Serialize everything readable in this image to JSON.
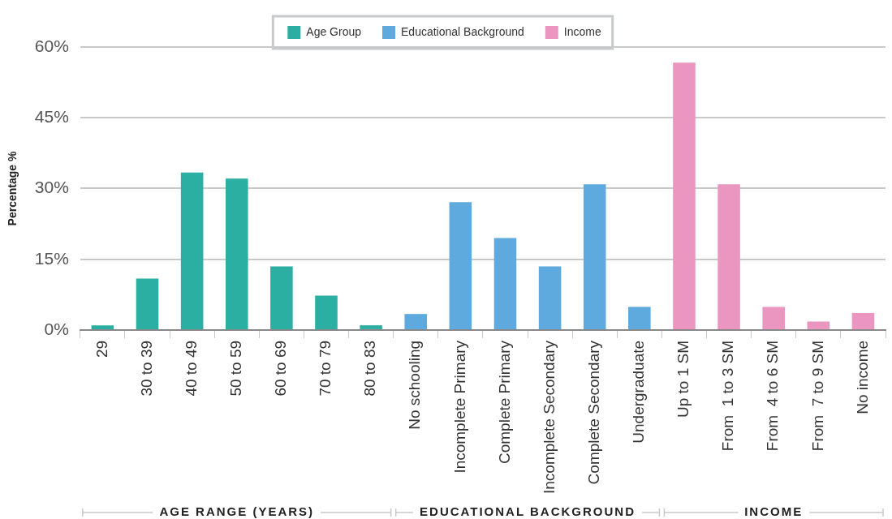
{
  "chart_data": {
    "type": "bar",
    "categories": [
      "29",
      "30 to 39",
      "40 to 49",
      "50 to 59",
      "60 to 69",
      "70 to 79",
      "80 to 83",
      "No schooling",
      "Incomplete Primary",
      "Complete Primary",
      "Incomplete Secondary",
      "Complete Secondary",
      "Undergraduate",
      "Up to 1 SM",
      "From  1 to 3 SM",
      "From  4 to 6 SM",
      "From  7 to 9 SM",
      "No income"
    ],
    "series": [
      {
        "name": "Age Group",
        "color": "#2bafa3",
        "values": [
          1.0,
          10.9,
          33.4,
          32.1,
          13.5,
          7.3,
          1.0,
          null,
          null,
          null,
          null,
          null,
          null,
          null,
          null,
          null,
          null,
          null
        ]
      },
      {
        "name": "Educational Background",
        "color": "#5ea9dd",
        "values": [
          null,
          null,
          null,
          null,
          null,
          null,
          null,
          3.4,
          27.1,
          19.5,
          13.5,
          30.9,
          4.9,
          null,
          null,
          null,
          null,
          null
        ]
      },
      {
        "name": "Income",
        "color": "#ea96c0",
        "values": [
          null,
          null,
          null,
          null,
          null,
          null,
          null,
          null,
          null,
          null,
          null,
          null,
          null,
          56.7,
          30.9,
          4.9,
          1.8,
          3.6
        ]
      }
    ],
    "ylabel": "Percentage %",
    "ylim": [
      0,
      60
    ],
    "yticks": [
      {
        "value": 0,
        "label": "0%"
      },
      {
        "value": 15,
        "label": "15%"
      },
      {
        "value": 30,
        "label": "30%"
      },
      {
        "value": 45,
        "label": "45%"
      },
      {
        "value": 60,
        "label": "60%"
      }
    ],
    "annotations": [
      "AGE RANGE (YEARS)",
      "EDUCATIONAL BACKGROUND",
      "INCOME"
    ],
    "grid": "y",
    "legend": "top"
  }
}
